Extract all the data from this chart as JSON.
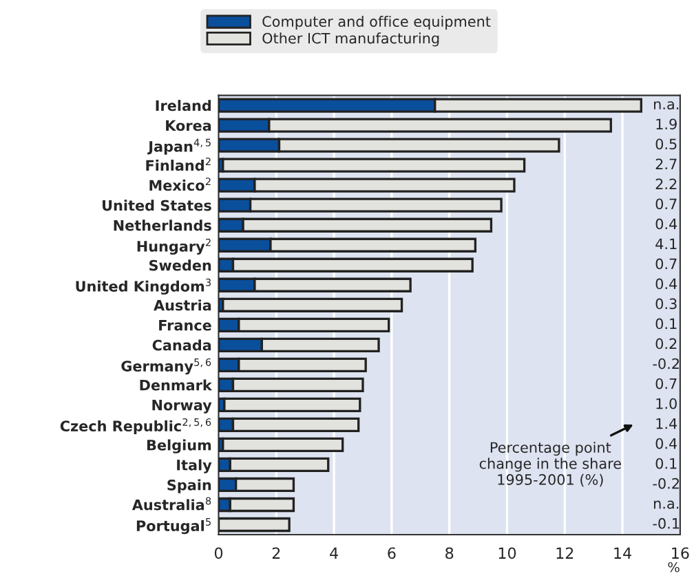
{
  "chart_data": {
    "type": "bar",
    "orientation": "horizontal",
    "stacked": true,
    "categories": [
      "Ireland",
      "Korea",
      "Japan$^{4,5}$",
      "Finland$^{2}$",
      "Mexico$^{2}$",
      "United States",
      "Netherlands",
      "Hungary$^{2}$",
      "Sweden",
      "United Kingdom$^{3}$",
      "Austria",
      "France",
      "Canada",
      "Germany$^{5,6}$",
      "Denmark",
      "Norway",
      "Czech Republic$^{2,5,6}$",
      "Belgium",
      "Italy",
      "Spain",
      "Australia$^{8}$",
      "Portugal$^{5}$"
    ],
    "series": [
      {
        "name": "Computer and office equipment",
        "color": "#0a4f9c",
        "values": [
          7.5,
          1.75,
          2.1,
          0.15,
          1.25,
          1.1,
          0.85,
          1.8,
          0.5,
          1.25,
          0.15,
          0.7,
          1.5,
          0.7,
          0.5,
          0.2,
          0.5,
          0.15,
          0.4,
          0.6,
          0.4,
          null
        ]
      },
      {
        "name": "Other ICT manufacturing",
        "color": "#e2e2de",
        "values": [
          7.15,
          11.85,
          9.7,
          10.45,
          9.0,
          8.7,
          8.6,
          7.1,
          8.3,
          5.4,
          6.2,
          5.2,
          4.05,
          4.4,
          4.5,
          4.7,
          4.35,
          4.15,
          3.4,
          2.0,
          2.2,
          2.45
        ]
      }
    ],
    "xlim": [
      0,
      16
    ],
    "xticks": [
      0,
      2,
      4,
      6,
      8,
      10,
      12,
      14,
      16
    ],
    "xlabel": "%",
    "grid": "x",
    "legend": "top left",
    "annotations": [
      "n.a.",
      "1.9",
      "0.5",
      "2.7",
      "2.2",
      "0.7",
      "0.4",
      "4.1",
      "0.7",
      "0.4",
      "0.3",
      "0.1",
      "0.2",
      "-0.2",
      "0.7",
      "1.0",
      "1.4",
      "0.4",
      "0.1",
      "-0.2",
      "n.a.",
      "-0.1",
      "Percentage point\nchange in the share\n1995-2001 (%)"
    ]
  }
}
